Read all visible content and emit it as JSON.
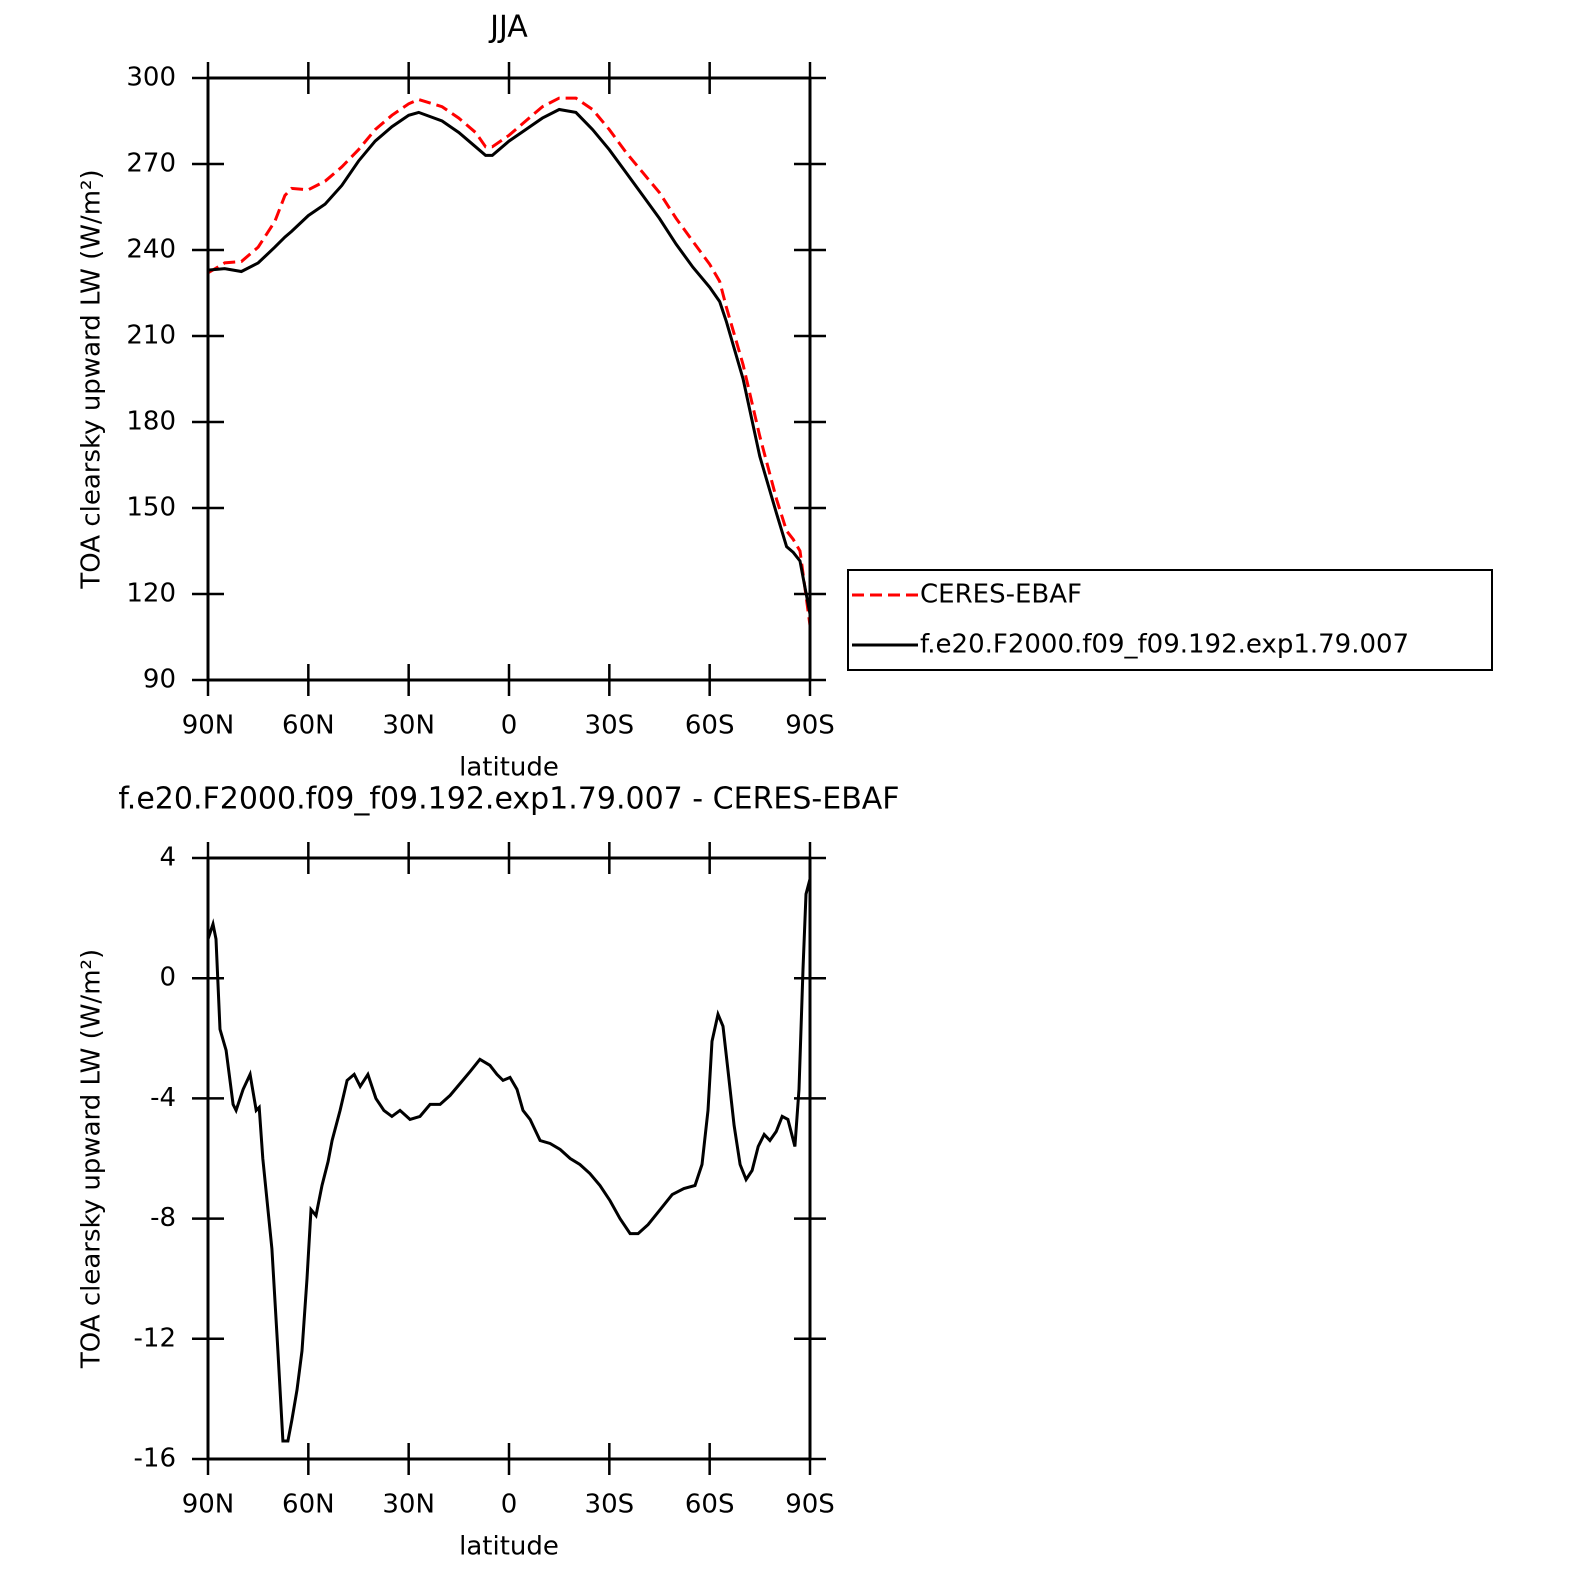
{
  "chart_data": [
    {
      "type": "line",
      "title": "JJA",
      "xlabel": "latitude",
      "ylabel": "TOA clearsky upward LW (W/m²)",
      "x": [
        90,
        85,
        80,
        75,
        70,
        67,
        65,
        60,
        55,
        50,
        45,
        40,
        35,
        30,
        27,
        20,
        15,
        10,
        7,
        5,
        0,
        -5,
        -10,
        -15,
        -20,
        -25,
        -30,
        -35,
        -40,
        -45,
        -50,
        -55,
        -60,
        -63,
        -65,
        -70,
        -75,
        -80,
        -83,
        -85,
        -87,
        -90
      ],
      "series": [
        {
          "name": "CERES-EBAF",
          "color": "#ff0000",
          "style": "dashed",
          "values": [
            232,
            235.5,
            236,
            241,
            250,
            259,
            261.5,
            261,
            264,
            269,
            275,
            282,
            287,
            291,
            292.5,
            290,
            286,
            281,
            276,
            276,
            280,
            285,
            290,
            293,
            293,
            289,
            282,
            274,
            267,
            260,
            251,
            243,
            235,
            229,
            220,
            200,
            175,
            153,
            142,
            139,
            135,
            109
          ]
        },
        {
          "name": "f.e20.F2000.f09_f09.192.exp1.79.007",
          "color": "#000000",
          "style": "solid",
          "values": [
            233,
            233.5,
            232.5,
            235.5,
            241,
            244.5,
            246.5,
            252,
            256,
            262.5,
            271,
            278,
            283,
            287,
            288,
            285,
            281,
            276,
            273,
            273,
            278,
            282,
            286,
            289,
            288,
            282,
            275,
            267,
            259,
            251,
            242,
            234,
            227,
            222,
            215,
            195,
            168,
            148,
            136.5,
            134.5,
            131.5,
            113
          ]
        }
      ],
      "xlim": [
        90,
        -90
      ],
      "xticks": [
        {
          "value": 90,
          "label": "90N"
        },
        {
          "value": 60,
          "label": "60N"
        },
        {
          "value": 30,
          "label": "30N"
        },
        0,
        {
          "value": -30,
          "label": "30S"
        },
        {
          "value": -60,
          "label": "60S"
        },
        {
          "value": -90,
          "label": "90S"
        }
      ],
      "ylim": [
        90,
        300
      ],
      "yticks": [
        90,
        120,
        150,
        180,
        210,
        240,
        270,
        300
      ],
      "legend": "right"
    },
    {
      "type": "line",
      "title": "f.e20.F2000.f09_f09.192.exp1.79.007 - CERES-EBAF",
      "xlabel": "latitude",
      "ylabel": "TOA clearsky upward LW (W/m²)",
      "x": [
        90,
        88.5,
        87.6,
        86.4,
        84.6,
        82.5,
        81.6,
        79.5,
        77.4,
        75.6,
        74.7,
        73.6,
        70.9,
        69.1,
        67.6,
        66.1,
        64.9,
        63.4,
        61.9,
        60.4,
        59.2,
        57.7,
        55.9,
        54.1,
        52.9,
        50.5,
        48.4,
        46.3,
        44.5,
        42.2,
        39.8,
        37.4,
        35,
        32.6,
        29.6,
        26.6,
        23.6,
        20.6,
        17.6,
        14.6,
        11.6,
        8.7,
        5.7,
        3.6,
        1.8,
        -0.3,
        -2.4,
        -4.2,
        -6.3,
        -9.3,
        -12.3,
        -15.3,
        -18.3,
        -21.2,
        -24.2,
        -27.2,
        -30.2,
        -33.2,
        -36.2,
        -38.6,
        -41.6,
        -45.2,
        -48.8,
        -52.3,
        -55.6,
        -57.7,
        -59.5,
        -60.7,
        -62.5,
        -64,
        -65.5,
        -67.3,
        -69.1,
        -70.9,
        -72.7,
        -74.5,
        -76.3,
        -78,
        -79.9,
        -81.7,
        -83.4,
        -85.5,
        -86.7,
        -87.9,
        -88.8,
        -90
      ],
      "series": [
        {
          "color": "#000000",
          "style": "solid",
          "values": [
            1.3,
            1.8,
            1.3,
            -1.7,
            -2.4,
            -4.2,
            -4.4,
            -3.7,
            -3.2,
            -4.4,
            -4.3,
            -6.0,
            -9.0,
            -12.4,
            -15.4,
            -15.4,
            -14.7,
            -13.7,
            -12.4,
            -10.0,
            -7.7,
            -7.9,
            -6.9,
            -6.1,
            -5.4,
            -4.4,
            -3.4,
            -3.2,
            -3.6,
            -3.2,
            -4.0,
            -4.4,
            -4.6,
            -4.4,
            -4.7,
            -4.6,
            -4.2,
            -4.2,
            -3.9,
            -3.5,
            -3.1,
            -2.7,
            -2.9,
            -3.2,
            -3.4,
            -3.3,
            -3.7,
            -4.4,
            -4.7,
            -5.4,
            -5.5,
            -5.7,
            -6.0,
            -6.2,
            -6.5,
            -6.9,
            -7.4,
            -8.0,
            -8.5,
            -8.5,
            -8.2,
            -7.7,
            -7.2,
            -7.0,
            -6.9,
            -6.2,
            -4.4,
            -2.1,
            -1.2,
            -1.6,
            -3.1,
            -4.9,
            -6.2,
            -6.7,
            -6.4,
            -5.6,
            -5.2,
            -5.4,
            -5.1,
            -4.6,
            -4.7,
            -5.6,
            -3.7,
            0.3,
            2.8,
            3.3
          ]
        }
      ],
      "xlim": [
        90,
        -90
      ],
      "xticks": [
        {
          "value": 90,
          "label": "90N"
        },
        {
          "value": 60,
          "label": "60N"
        },
        {
          "value": 30,
          "label": "30N"
        },
        0,
        {
          "value": -30,
          "label": "30S"
        },
        {
          "value": -60,
          "label": "60S"
        },
        {
          "value": -90,
          "label": "90S"
        }
      ],
      "ylim": [
        -16,
        4
      ],
      "yticks": [
        -16,
        -12,
        -8,
        -4,
        0,
        4
      ]
    }
  ]
}
